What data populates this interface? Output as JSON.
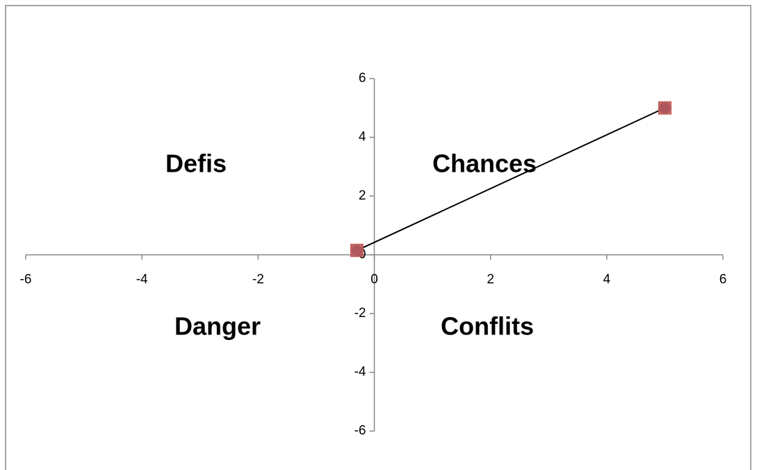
{
  "chart_data": {
    "type": "scatter",
    "x": [
      -0.3,
      5
    ],
    "series": [
      {
        "values": [
          0.15,
          5
        ],
        "color": "#4f81bd",
        "marker": "circle",
        "line_color": "#000000"
      },
      {
        "values": [
          0.15,
          5
        ],
        "color": "#c0504d",
        "marker": "square"
      }
    ],
    "xlim": [
      -6,
      6
    ],
    "xticks": [
      -6,
      -4,
      -2,
      0,
      2,
      4,
      6
    ],
    "ylim": [
      -6,
      6
    ],
    "yticks": [
      -6,
      -4,
      -2,
      0,
      2,
      4,
      6
    ],
    "grid": false,
    "annotations": [
      "Defis",
      "Chances",
      "Danger",
      "Conflits"
    ]
  }
}
